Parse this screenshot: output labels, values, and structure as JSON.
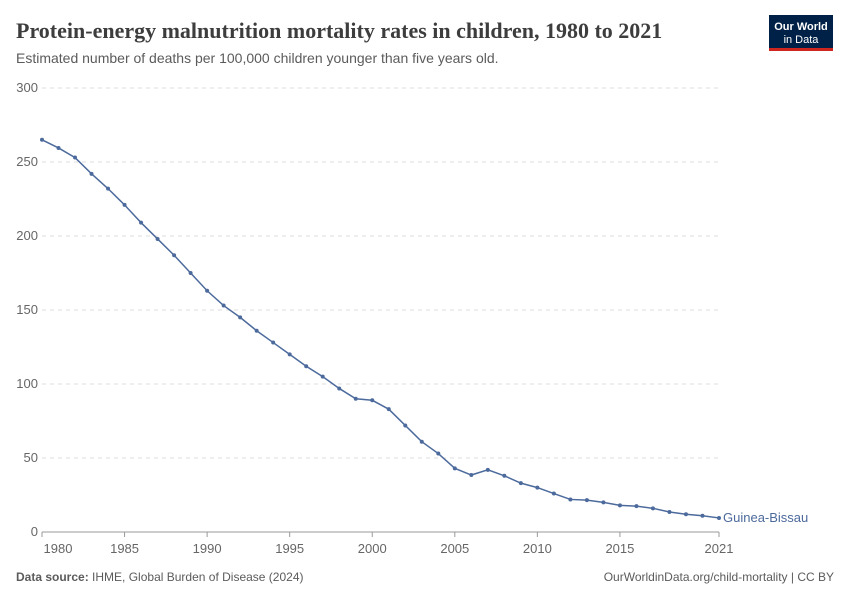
{
  "chart_data": {
    "type": "line",
    "title": "Protein-energy malnutrition mortality rates in children, 1980 to 2021",
    "subtitle": "Estimated number of deaths per 100,000 children younger than five years old.",
    "x": [
      1980,
      1981,
      1982,
      1983,
      1984,
      1985,
      1986,
      1987,
      1988,
      1989,
      1990,
      1991,
      1992,
      1993,
      1994,
      1995,
      1996,
      1997,
      1998,
      1999,
      2000,
      2001,
      2002,
      2003,
      2004,
      2005,
      2006,
      2007,
      2008,
      2009,
      2010,
      2011,
      2012,
      2013,
      2014,
      2015,
      2016,
      2017,
      2018,
      2019,
      2020,
      2021
    ],
    "series": [
      {
        "name": "Guinea-Bissau",
        "color": "#4c6a9c",
        "values": [
          265,
          259.5,
          253,
          242,
          232,
          221,
          209,
          198,
          187,
          175,
          163,
          153,
          145,
          136,
          128,
          120,
          112,
          105,
          97,
          90,
          89,
          83,
          72,
          61,
          53,
          43,
          38.5,
          42,
          38,
          33,
          30,
          26,
          22,
          21.5,
          20,
          18,
          17.5,
          16,
          13.5,
          12,
          11,
          9.5
        ]
      }
    ],
    "xlim": [
      1980,
      2021
    ],
    "xticks": [
      1980,
      1985,
      1990,
      1995,
      2000,
      2005,
      2010,
      2015,
      2021
    ],
    "ylim": [
      0,
      300
    ],
    "yticks": [
      0,
      50,
      100,
      150,
      200,
      250,
      300
    ],
    "grid": true
  },
  "logo": [
    "Our World",
    "in Data"
  ],
  "footer": {
    "source_label": "Data source:",
    "source": "IHME, Global Burden of Disease (2024)",
    "right": "OurWorldinData.org/child-mortality | CC BY"
  }
}
